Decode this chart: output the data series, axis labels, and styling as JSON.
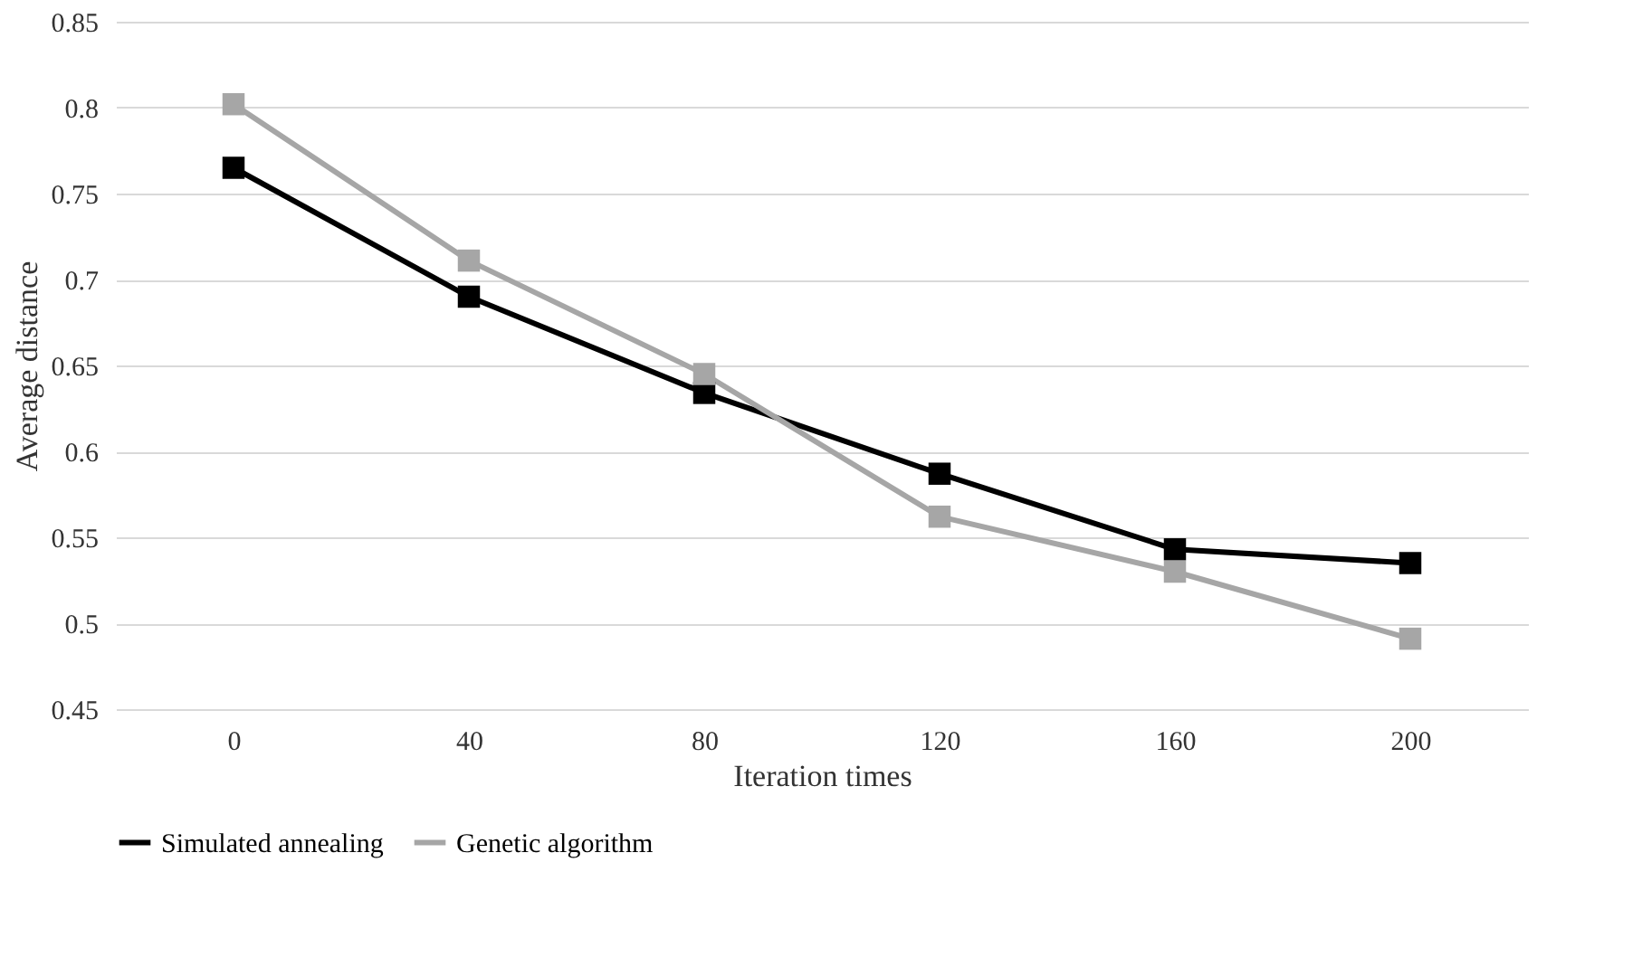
{
  "chart_data": {
    "type": "line",
    "xlabel": "Iteration times",
    "ylabel": "Average distance",
    "categories": [
      "0",
      "40",
      "80",
      "120",
      "160",
      "200"
    ],
    "series": [
      {
        "name": "Simulated annealing",
        "color": "#000000",
        "values": [
          0.765,
          0.69,
          0.634,
          0.587,
          0.543,
          0.535
        ]
      },
      {
        "name": "Genetic algorithm",
        "color": "#a6a6a6",
        "values": [
          0.802,
          0.711,
          0.645,
          0.562,
          0.53,
          0.491
        ]
      }
    ],
    "ylim": [
      0.45,
      0.85
    ],
    "yticks": [
      0.45,
      0.5,
      0.55,
      0.6,
      0.65,
      0.7,
      0.75,
      0.8,
      0.85
    ],
    "grid": "y",
    "legend": "bottom",
    "marker": "square",
    "line_style": "solid"
  }
}
